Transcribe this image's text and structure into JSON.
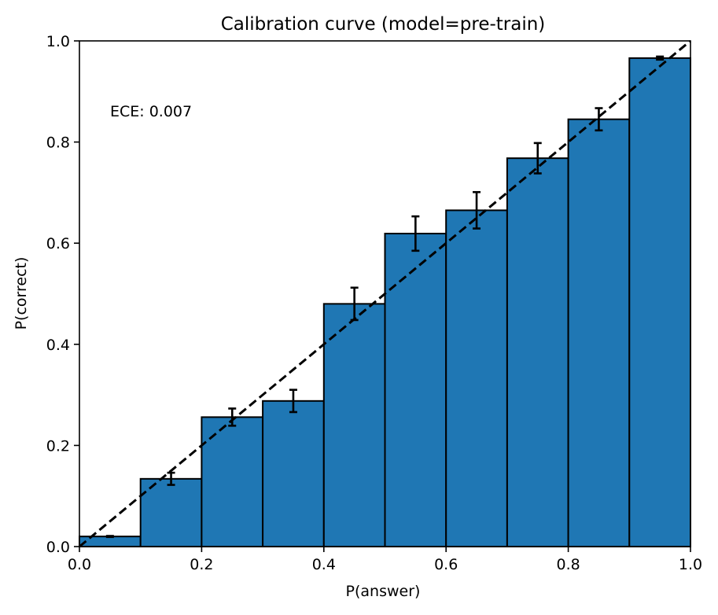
{
  "chart_data": {
    "type": "bar",
    "title": "Calibration curve (model=pre-train)",
    "xlabel": "P(answer)",
    "ylabel": "P(correct)",
    "xlim": [
      0.0,
      1.0
    ],
    "ylim": [
      0.0,
      1.0
    ],
    "xticks": [
      "0.0",
      "0.2",
      "0.4",
      "0.6",
      "0.8",
      "1.0"
    ],
    "yticks": [
      "0.0",
      "0.2",
      "0.4",
      "0.6",
      "0.8",
      "1.0"
    ],
    "annotation": "ECE: 0.007",
    "bin_width": 0.1,
    "bins": [
      {
        "left": 0.0,
        "value": 0.02,
        "err": 0.001
      },
      {
        "left": 0.1,
        "value": 0.134,
        "err": 0.012
      },
      {
        "left": 0.2,
        "value": 0.256,
        "err": 0.017
      },
      {
        "left": 0.3,
        "value": 0.288,
        "err": 0.022
      },
      {
        "left": 0.4,
        "value": 0.48,
        "err": 0.032
      },
      {
        "left": 0.5,
        "value": 0.619,
        "err": 0.034
      },
      {
        "left": 0.6,
        "value": 0.665,
        "err": 0.036
      },
      {
        "left": 0.7,
        "value": 0.768,
        "err": 0.03
      },
      {
        "left": 0.8,
        "value": 0.845,
        "err": 0.022
      },
      {
        "left": 0.9,
        "value": 0.966,
        "err": 0.003
      }
    ],
    "bar_color": "#1f77b4",
    "edge_color": "#000000",
    "reference_line": {
      "style": "dashed",
      "color": "#000000",
      "from": [
        0,
        0
      ],
      "to": [
        1,
        1
      ]
    },
    "grid": false,
    "legend": "none"
  }
}
